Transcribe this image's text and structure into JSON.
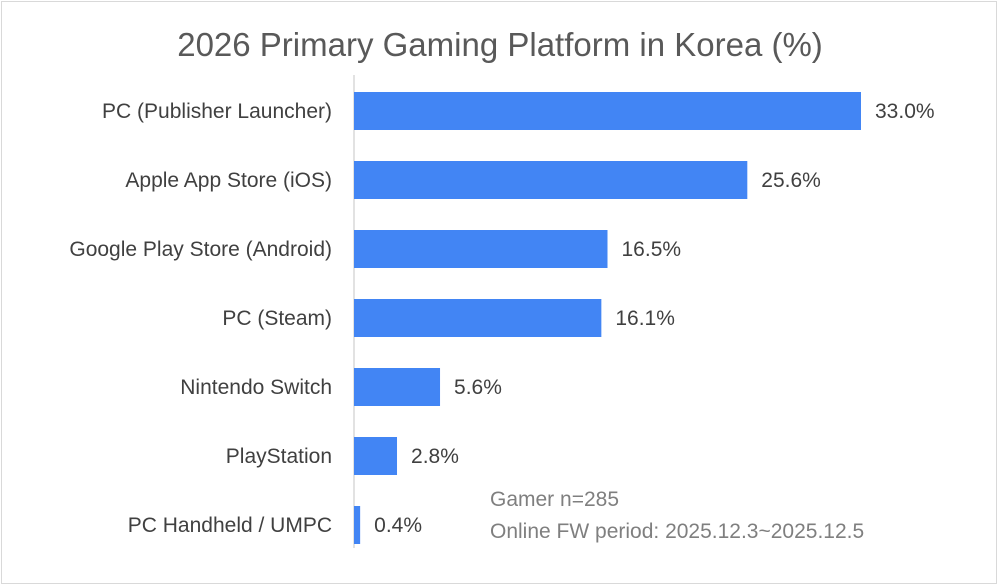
{
  "chart_data": {
    "type": "bar",
    "orientation": "horizontal",
    "title": "2026 Primary Gaming Platform in Korea (%)",
    "categories": [
      "PC (Publisher Launcher)",
      "Apple App Store (iOS)",
      "Google Play Store (Android)",
      "PC (Steam)",
      "Nintendo Switch",
      "PlayStation",
      "PC Handheld / UMPC"
    ],
    "values": [
      33.0,
      25.6,
      16.5,
      16.1,
      5.6,
      2.8,
      0.4
    ],
    "value_labels": [
      "33.0%",
      "25.6%",
      "16.5%",
      "16.1%",
      "5.6%",
      "2.8%",
      "0.4%"
    ],
    "xlim": [
      0,
      33.0
    ],
    "grid": false,
    "legend": "none",
    "bar_color": "#4285f4",
    "annotations": [
      "Gamer n=285",
      "Online FW period: 2025.12.3~2025.12.5"
    ]
  }
}
